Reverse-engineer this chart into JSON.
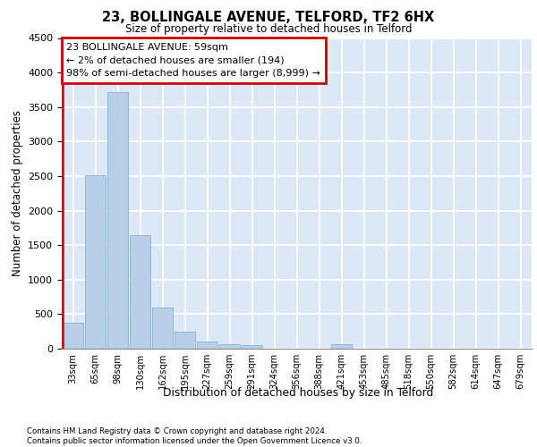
{
  "title": "23, BOLLINGALE AVENUE, TELFORD, TF2 6HX",
  "subtitle": "Size of property relative to detached houses in Telford",
  "xlabel": "Distribution of detached houses by size in Telford",
  "ylabel": "Number of detached properties",
  "categories": [
    "33sqm",
    "65sqm",
    "98sqm",
    "130sqm",
    "162sqm",
    "195sqm",
    "227sqm",
    "259sqm",
    "291sqm",
    "324sqm",
    "356sqm",
    "388sqm",
    "421sqm",
    "453sqm",
    "485sqm",
    "518sqm",
    "550sqm",
    "582sqm",
    "614sqm",
    "647sqm",
    "679sqm"
  ],
  "values": [
    380,
    2510,
    3720,
    1640,
    600,
    240,
    105,
    65,
    50,
    0,
    0,
    0,
    70,
    0,
    0,
    0,
    0,
    0,
    0,
    0,
    0
  ],
  "bar_color": "#b8cfe8",
  "bar_edge_color": "#7aaad0",
  "highlight_color": "#cc0000",
  "annotation_text": "23 BOLLINGALE AVENUE: 59sqm\n← 2% of detached houses are smaller (194)\n98% of semi-detached houses are larger (8,999) →",
  "annotation_box_color": "#cc0000",
  "ylim": [
    0,
    4500
  ],
  "yticks": [
    0,
    500,
    1000,
    1500,
    2000,
    2500,
    3000,
    3500,
    4000,
    4500
  ],
  "background_color": "#dce8f5",
  "grid_color": "#ffffff",
  "footer_line1": "Contains HM Land Registry data © Crown copyright and database right 2024.",
  "footer_line2": "Contains public sector information licensed under the Open Government Licence v3.0."
}
